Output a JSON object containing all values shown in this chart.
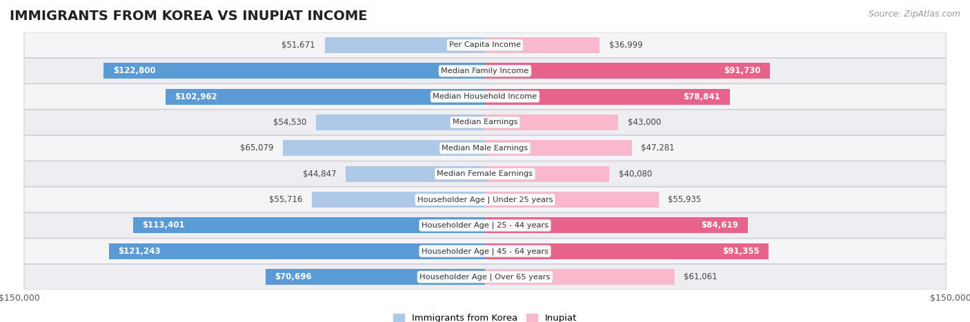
{
  "title": "IMMIGRANTS FROM KOREA VS INUPIAT INCOME",
  "source": "Source: ZipAtlas.com",
  "categories": [
    "Per Capita Income",
    "Median Family Income",
    "Median Household Income",
    "Median Earnings",
    "Median Male Earnings",
    "Median Female Earnings",
    "Householder Age | Under 25 years",
    "Householder Age | 25 - 44 years",
    "Householder Age | 45 - 64 years",
    "Householder Age | Over 65 years"
  ],
  "korea_values": [
    51671,
    122800,
    102962,
    54530,
    65079,
    44847,
    55716,
    113401,
    121243,
    70696
  ],
  "inupiat_values": [
    36999,
    91730,
    78841,
    43000,
    47281,
    40080,
    55935,
    84619,
    91355,
    61061
  ],
  "max_value": 150000,
  "korea_color_light": "#aec8e8",
  "korea_color_dark": "#5b9bd5",
  "inupiat_color_light": "#f9b8cc",
  "inupiat_color_dark": "#e8638c",
  "korea_label": "Immigrants from Korea",
  "inupiat_label": "Inupiat",
  "bar_height": 0.62,
  "label_fontsize": 8.5,
  "category_fontsize": 8.2,
  "title_fontsize": 14,
  "source_fontsize": 9,
  "inside_threshold": 70000,
  "row_bg_light": "#f5f5f8",
  "row_bg_dark": "#ededf2"
}
